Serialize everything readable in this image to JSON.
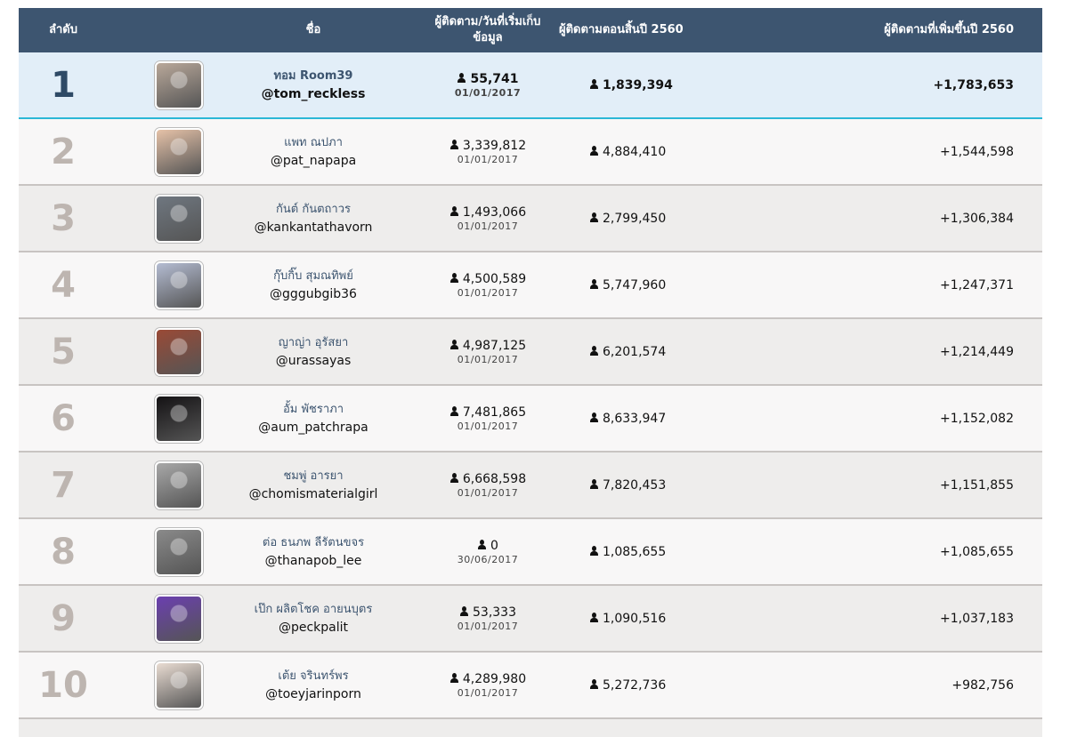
{
  "header": {
    "rank": "ลำดับ",
    "name": "ชื่อ",
    "start_line1": "ผู้ติดตาม/วันที่เริ่มเก็บ",
    "start_line2": "ข้อมูล",
    "end_2560": "ผู้ติดตามตอนสิ้นปี 2560",
    "gain_2560": "ผู้ติดตามที่เพิ่มขึ้นปี 2560"
  },
  "rows": [
    {
      "rank": "1",
      "thai": "ทอม Room39",
      "handle": "@tom_reckless",
      "start_count": "55,741",
      "start_date": "01/01/2017",
      "end_count": "1,839,394",
      "gain": "+1,783,653",
      "avatar_color": "#b9a89a"
    },
    {
      "rank": "2",
      "thai": "แพท ณปภา",
      "handle": "@pat_napapa",
      "start_count": "3,339,812",
      "start_date": "01/01/2017",
      "end_count": "4,884,410",
      "gain": "+1,544,598",
      "avatar_color": "#e6c2a8"
    },
    {
      "rank": "3",
      "thai": "กันต์ กันตถาวร",
      "handle": "@kankantathavorn",
      "start_count": "1,493,066",
      "start_date": "01/01/2017",
      "end_count": "2,799,450",
      "gain": "+1,306,384",
      "avatar_color": "#6f7780"
    },
    {
      "rank": "4",
      "thai": "กุ๊บกิ๊บ สุมณทิพย์",
      "handle": "@gggubgib36",
      "start_count": "4,500,589",
      "start_date": "01/01/2017",
      "end_count": "5,747,960",
      "gain": "+1,247,371",
      "avatar_color": "#b4bcd2"
    },
    {
      "rank": "5",
      "thai": "ญาญ่า อุรัสยา",
      "handle": "@urassayas",
      "start_count": "4,987,125",
      "start_date": "01/01/2017",
      "end_count": "6,201,574",
      "gain": "+1,214,449",
      "avatar_color": "#9a4a36"
    },
    {
      "rank": "6",
      "thai": "อั้ม พัชราภา",
      "handle": "@aum_patchrapa",
      "start_count": "7,481,865",
      "start_date": "01/01/2017",
      "end_count": "8,633,947",
      "gain": "+1,152,082",
      "avatar_color": "#141214"
    },
    {
      "rank": "7",
      "thai": "ชมพู่ อารยา",
      "handle": "@chomismaterialgirl",
      "start_count": "6,668,598",
      "start_date": "01/01/2017",
      "end_count": "7,820,453",
      "gain": "+1,151,855",
      "avatar_color": "#a8a8a8"
    },
    {
      "rank": "8",
      "thai": "ต่อ ธนภพ ลีรัตนขจร",
      "handle": "@thanapob_lee",
      "start_count": "0",
      "start_date": "30/06/2017",
      "end_count": "1,085,655",
      "gain": "+1,085,655",
      "avatar_color": "#8a8a8a"
    },
    {
      "rank": "9",
      "thai": "เป๊ก ผลิตโชค อายนบุตร",
      "handle": "@peckpalit",
      "start_count": "53,333",
      "start_date": "01/01/2017",
      "end_count": "1,090,516",
      "gain": "+1,037,183",
      "avatar_color": "#6b3fb0"
    },
    {
      "rank": "10",
      "thai": "เต้ย จรินทร์พร",
      "handle": "@toeyjarinporn",
      "start_count": "4,289,980",
      "start_date": "01/01/2017",
      "end_count": "5,272,736",
      "gain": "+982,756",
      "avatar_color": "#e9dcd2"
    }
  ]
}
